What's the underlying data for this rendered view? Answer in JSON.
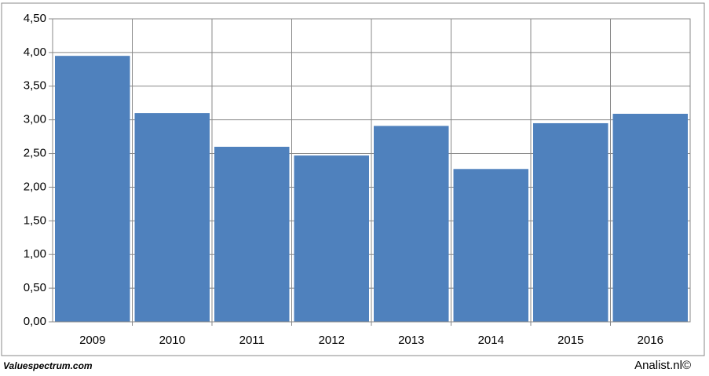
{
  "chart_data": {
    "type": "bar",
    "categories": [
      "2009",
      "2010",
      "2011",
      "2012",
      "2013",
      "2014",
      "2015",
      "2016"
    ],
    "values": [
      3.95,
      3.1,
      2.6,
      2.47,
      2.91,
      2.27,
      2.95,
      3.09
    ],
    "color": "#4f81bd",
    "ylim": [
      0,
      4.5
    ],
    "yticks": [
      {
        "value": 0,
        "label": "0,00"
      },
      {
        "value": 0.5,
        "label": "0,50"
      },
      {
        "value": 1,
        "label": "1,00"
      },
      {
        "value": 1.5,
        "label": "1,50"
      },
      {
        "value": 2,
        "label": "2,00"
      },
      {
        "value": 2.5,
        "label": "2,50"
      },
      {
        "value": 3,
        "label": "3,00"
      },
      {
        "value": 3.5,
        "label": "3,50"
      },
      {
        "value": 4,
        "label": "4,00"
      },
      {
        "value": 4.5,
        "label": "4,50"
      }
    ],
    "grid": true,
    "footer_left": "Valuespectrum.com",
    "footer_right": "Analist.nl©"
  }
}
